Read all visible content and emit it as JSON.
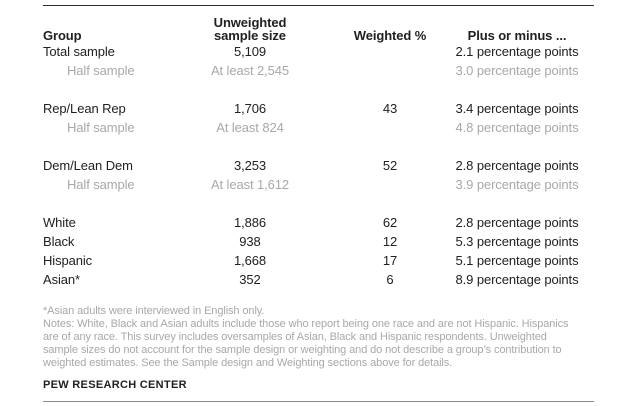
{
  "colors": {
    "text": "#212121",
    "muted_text": "#a6a8ab",
    "rule_top": "#2f2f2f",
    "rule_bottom": "#8b8b8b",
    "background": "#ffffff"
  },
  "table": {
    "headers": {
      "group": "Group",
      "sample_size_line1": "Unweighted",
      "sample_size_line2": "sample size",
      "weighted": "Weighted %",
      "moe": "Plus or minus ..."
    },
    "rows": [
      {
        "group": "Total sample",
        "sample": "5,109",
        "weighted": "",
        "moe": "2.1 percentage points"
      },
      {
        "group": "Half sample",
        "sample": "At least 2,545",
        "weighted": "",
        "moe": "3.0 percentage points"
      },
      {
        "group": "Rep/Lean Rep",
        "sample": "1,706",
        "weighted": "43",
        "moe": "3.4 percentage points"
      },
      {
        "group": "Half sample",
        "sample": "At least 824",
        "weighted": "",
        "moe": "4.8 percentage points"
      },
      {
        "group": "Dem/Lean Dem",
        "sample": "3,253",
        "weighted": "52",
        "moe": "2.8 percentage points"
      },
      {
        "group": "Half sample",
        "sample": "At least 1,612",
        "weighted": "",
        "moe": "3.9 percentage points"
      },
      {
        "group": "White",
        "sample": "1,886",
        "weighted": "62",
        "moe": "2.8 percentage points"
      },
      {
        "group": "Black",
        "sample": "938",
        "weighted": "12",
        "moe": "5.3 percentage points"
      },
      {
        "group": "Hispanic",
        "sample": "1,668",
        "weighted": "17",
        "moe": "5.1 percentage points"
      },
      {
        "group": "Asian*",
        "sample": "352",
        "weighted": "6",
        "moe": "8.9 percentage points"
      }
    ]
  },
  "footnotes": {
    "asterisk": "*Asian adults were interviewed in English only.",
    "notes": "Notes: White, Black and Asian adults include those who report being one race and are not Hispanic. Hispanics are of any race. This survey includes oversamples of Asian, Black and Hispanic respondents. Unweighted sample sizes do not account for the sample design or weighting and do not describe a group’s contribution to weighted estimates. See the Sample design and Weighting sections above for details.",
    "source": "PEW RESEARCH CENTER"
  },
  "chart_data": {
    "type": "table",
    "title": "",
    "columns": [
      "Group",
      "Unweighted sample size",
      "Weighted %",
      "Plus or minus ..."
    ],
    "rows": [
      [
        "Total sample",
        "5,109",
        "",
        "2.1 percentage points"
      ],
      [
        "Half sample",
        "At least 2,545",
        "",
        "3.0 percentage points"
      ],
      [
        "Rep/Lean Rep",
        "1,706",
        "43",
        "3.4 percentage points"
      ],
      [
        "Half sample",
        "At least 824",
        "",
        "4.8 percentage points"
      ],
      [
        "Dem/Lean Dem",
        "3,253",
        "52",
        "2.8 percentage points"
      ],
      [
        "Half sample",
        "At least 1,612",
        "",
        "3.9 percentage points"
      ],
      [
        "White",
        "1,886",
        "62",
        "2.8 percentage points"
      ],
      [
        "Black",
        "938",
        "12",
        "5.3 percentage points"
      ],
      [
        "Hispanic",
        "1,668",
        "17",
        "5.1 percentage points"
      ],
      [
        "Asian*",
        "352",
        "6",
        "8.9 percentage points"
      ]
    ],
    "layout_hints": {
      "muted_rows": [
        1,
        3,
        5
      ],
      "indented_rows": [
        1,
        3,
        5
      ],
      "group_breaks_before_rows": [
        2,
        4,
        6
      ]
    }
  }
}
